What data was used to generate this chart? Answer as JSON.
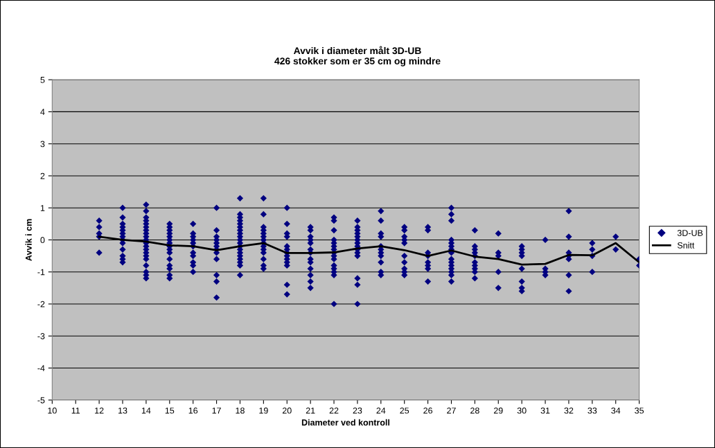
{
  "chart_data": {
    "type": "scatter",
    "title": "Avvik i diameter målt 3D-UB",
    "subtitle": "426 stokker som er 35 cm og mindre",
    "xlabel": "Diameter ved kontroll",
    "ylabel": "Avvik i cm",
    "xlim": [
      10,
      35
    ],
    "xticks": [
      10,
      11,
      12,
      13,
      14,
      15,
      16,
      17,
      18,
      19,
      20,
      21,
      22,
      23,
      24,
      25,
      26,
      27,
      28,
      29,
      30,
      31,
      32,
      33,
      34,
      35
    ],
    "ylim": [
      -5,
      5
    ],
    "yticks": [
      -5,
      -4,
      -3,
      -2,
      -1,
      0,
      1,
      2,
      3,
      4,
      5
    ],
    "grid": "y",
    "legend": "right",
    "series": [
      {
        "name": "3D-UB",
        "color": "#000080",
        "marker": "diamond",
        "x": [
          12,
          12,
          12,
          12,
          12,
          13,
          13,
          13,
          13,
          13,
          13,
          13,
          13,
          13,
          13,
          13,
          13,
          13,
          14,
          14,
          14,
          14,
          14,
          14,
          14,
          14,
          14,
          14,
          14,
          14,
          14,
          14,
          14,
          14,
          14,
          14,
          14,
          14,
          15,
          15,
          15,
          15,
          15,
          15,
          15,
          15,
          15,
          15,
          15,
          15,
          15,
          15,
          15,
          16,
          16,
          16,
          16,
          16,
          16,
          16,
          16,
          16,
          16,
          16,
          17,
          17,
          17,
          17,
          17,
          17,
          17,
          17,
          17,
          17,
          17,
          17,
          18,
          18,
          18,
          18,
          18,
          18,
          18,
          18,
          18,
          18,
          18,
          18,
          18,
          18,
          18,
          18,
          18,
          18,
          18,
          19,
          19,
          19,
          19,
          19,
          19,
          19,
          19,
          19,
          19,
          19,
          19,
          19,
          19,
          20,
          20,
          20,
          20,
          20,
          20,
          20,
          20,
          20,
          20,
          20,
          20,
          20,
          21,
          21,
          21,
          21,
          21,
          21,
          21,
          21,
          21,
          21,
          21,
          21,
          21,
          22,
          22,
          22,
          22,
          22,
          22,
          22,
          22,
          22,
          22,
          22,
          22,
          22,
          22,
          22,
          23,
          23,
          23,
          23,
          23,
          23,
          23,
          23,
          23,
          23,
          23,
          23,
          23,
          23,
          24,
          24,
          24,
          24,
          24,
          24,
          24,
          24,
          24,
          24,
          24,
          25,
          25,
          25,
          25,
          25,
          25,
          25,
          25,
          25,
          25,
          26,
          26,
          26,
          26,
          26,
          26,
          26,
          26,
          27,
          27,
          27,
          27,
          27,
          27,
          27,
          27,
          27,
          27,
          27,
          27,
          27,
          27,
          27,
          28,
          28,
          28,
          28,
          28,
          28,
          28,
          28,
          28,
          28,
          29,
          29,
          29,
          29,
          29,
          30,
          30,
          30,
          30,
          30,
          30,
          30,
          30,
          31,
          31,
          31,
          31,
          32,
          32,
          32,
          32,
          32,
          32,
          32,
          33,
          33,
          33,
          33,
          34,
          34,
          35,
          35
        ],
        "values": [
          0.6,
          0.4,
          0.2,
          0.1,
          -0.4,
          1.0,
          0.7,
          0.5,
          0.4,
          0.3,
          0.2,
          0.1,
          0,
          -0.1,
          -0.3,
          -0.5,
          -0.6,
          -0.7,
          1.1,
          0.9,
          0.7,
          0.6,
          0.5,
          0.4,
          0.3,
          0.2,
          0.1,
          0,
          -0.1,
          -0.2,
          -0.3,
          -0.4,
          -0.5,
          -0.6,
          -0.8,
          -1.0,
          -1.1,
          -1.2,
          0.5,
          0.4,
          0.3,
          0.2,
          0.1,
          0,
          -0.1,
          -0.2,
          -0.3,
          -0.4,
          -0.6,
          -0.8,
          -0.9,
          -1.1,
          -1.2,
          0.5,
          0.2,
          0.1,
          0,
          -0.1,
          -0.2,
          -0.4,
          -0.5,
          -0.7,
          -0.8,
          -1.0,
          1.0,
          0.3,
          0.1,
          0,
          -0.1,
          -0.2,
          -0.3,
          -0.4,
          -0.6,
          -1.1,
          -1.3,
          -1.8,
          1.3,
          0.8,
          0.7,
          0.6,
          0.5,
          0.4,
          0.3,
          0.2,
          0.1,
          0,
          -0.1,
          -0.2,
          -0.3,
          -0.4,
          -0.5,
          -0.6,
          -0.7,
          -0.8,
          -1.1,
          1.3,
          0.8,
          0.4,
          0.3,
          0.2,
          0.1,
          0,
          -0.1,
          -0.2,
          -0.3,
          -0.4,
          -0.6,
          -0.8,
          -0.9,
          1.0,
          0.5,
          0.2,
          0.1,
          -0.2,
          -0.3,
          -0.4,
          -0.5,
          -0.6,
          -0.7,
          -0.8,
          -1.4,
          -1.7,
          0.4,
          0.3,
          0.1,
          0,
          -0.1,
          -0.3,
          -0.4,
          -0.6,
          -0.7,
          -0.9,
          -1.1,
          -1.3,
          -1.5,
          0.7,
          0.6,
          0.3,
          0,
          -0.1,
          -0.2,
          -0.3,
          -0.4,
          -0.5,
          -0.6,
          -0.8,
          -0.9,
          -1.0,
          -1.1,
          -2.0,
          0.6,
          0.4,
          0.3,
          0.2,
          0.1,
          0,
          -0.1,
          -0.2,
          -0.3,
          -0.4,
          -0.5,
          -1.2,
          -1.4,
          -2.0,
          0.9,
          0.6,
          0.2,
          0.1,
          -0.2,
          -0.3,
          -0.4,
          -0.5,
          -0.7,
          -1.0,
          -1.1,
          0.4,
          0.3,
          0.1,
          0,
          -0.1,
          -0.5,
          -0.7,
          -0.9,
          -1.0,
          -1.1,
          0.4,
          0.3,
          -0.4,
          -0.5,
          -0.7,
          -0.8,
          -0.9,
          -1.3,
          1.0,
          0.8,
          0.6,
          0,
          -0.1,
          -0.2,
          -0.3,
          -0.4,
          -0.6,
          -0.7,
          -0.8,
          -0.9,
          -1.0,
          -1.1,
          -1.3,
          0.3,
          -0.2,
          -0.3,
          -0.4,
          -0.5,
          -0.7,
          -0.8,
          -0.9,
          -1.0,
          -1.2,
          0.2,
          -0.4,
          -0.5,
          -1.0,
          -1.5,
          -0.2,
          -0.3,
          -0.4,
          -0.5,
          -0.9,
          -1.3,
          -1.5,
          -1.6,
          0,
          -0.9,
          -1.0,
          -1.1,
          0.9,
          0.1,
          -0.4,
          -0.5,
          -0.6,
          -1.1,
          -1.6,
          -0.1,
          -0.3,
          -0.5,
          -1.0,
          0.1,
          -0.3,
          -0.6,
          -0.8
        ]
      },
      {
        "name": "Snitt",
        "type": "line",
        "color": "#000000",
        "marker": "none",
        "line_style": "solid",
        "x": [
          12,
          13,
          14,
          15,
          16,
          17,
          18,
          19,
          20,
          21,
          22,
          23,
          24,
          25,
          26,
          27,
          28,
          29,
          30,
          31,
          32,
          33,
          34,
          35
        ],
        "values": [
          0.1,
          0.0,
          -0.05,
          -0.17,
          -0.2,
          -0.32,
          -0.2,
          -0.1,
          -0.41,
          -0.41,
          -0.39,
          -0.27,
          -0.2,
          -0.32,
          -0.5,
          -0.33,
          -0.52,
          -0.6,
          -0.77,
          -0.75,
          -0.47,
          -0.48,
          -0.1,
          -0.7
        ]
      }
    ]
  }
}
